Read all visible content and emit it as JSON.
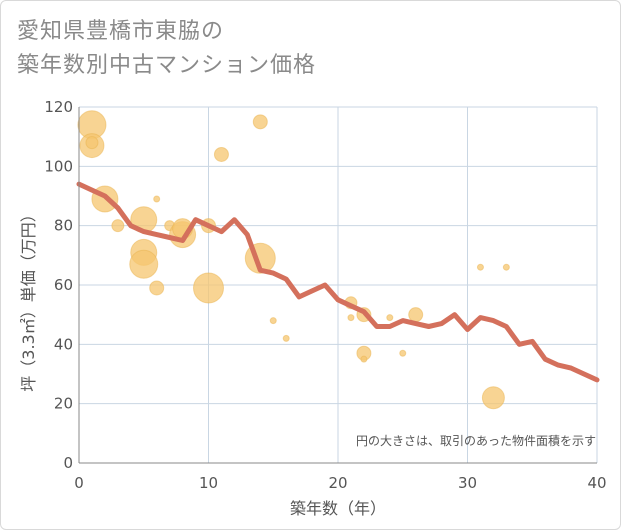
{
  "title": {
    "line1": "愛知県豊橋市東脇の",
    "line2": "築年数別中古マンション価格"
  },
  "note": "円の大きさは、取引のあった物件面積を示す",
  "colors": {
    "line": "#d4705c",
    "bubble_fill": "#f5c66f",
    "bubble_stroke": "#eab34f",
    "grid": "#c9d6e3",
    "axis": "#888888"
  },
  "chart_data": {
    "type": "scatter",
    "xlabel": "築年数（年）",
    "ylabel": "坪（3.3㎡）単価（万円）",
    "xlim": [
      0,
      40
    ],
    "ylim": [
      0,
      120
    ],
    "x_ticks": [
      "0",
      "10",
      "20",
      "30",
      "40"
    ],
    "y_ticks": [
      "0",
      "20",
      "40",
      "60",
      "80",
      "100",
      "120"
    ],
    "grid": true,
    "bubbles": [
      {
        "x": 1,
        "y": 114,
        "size": 14
      },
      {
        "x": 1,
        "y": 107,
        "size": 12
      },
      {
        "x": 1,
        "y": 108,
        "size": 6
      },
      {
        "x": 2,
        "y": 89,
        "size": 13
      },
      {
        "x": 3,
        "y": 80,
        "size": 6
      },
      {
        "x": 5,
        "y": 82,
        "size": 13
      },
      {
        "x": 5,
        "y": 71,
        "size": 13
      },
      {
        "x": 5,
        "y": 67,
        "size": 14
      },
      {
        "x": 6,
        "y": 89,
        "size": 3
      },
      {
        "x": 6,
        "y": 59,
        "size": 7
      },
      {
        "x": 7,
        "y": 80,
        "size": 5
      },
      {
        "x": 8,
        "y": 77,
        "size": 13
      },
      {
        "x": 8,
        "y": 79,
        "size": 10
      },
      {
        "x": 10,
        "y": 80,
        "size": 7
      },
      {
        "x": 10,
        "y": 59,
        "size": 15
      },
      {
        "x": 11,
        "y": 104,
        "size": 7
      },
      {
        "x": 14,
        "y": 115,
        "size": 7
      },
      {
        "x": 14,
        "y": 69,
        "size": 15
      },
      {
        "x": 15,
        "y": 48,
        "size": 3
      },
      {
        "x": 16,
        "y": 42,
        "size": 3
      },
      {
        "x": 21,
        "y": 54,
        "size": 6
      },
      {
        "x": 21,
        "y": 49,
        "size": 3
      },
      {
        "x": 22,
        "y": 50,
        "size": 7
      },
      {
        "x": 22,
        "y": 37,
        "size": 7
      },
      {
        "x": 22,
        "y": 35,
        "size": 3
      },
      {
        "x": 24,
        "y": 49,
        "size": 3
      },
      {
        "x": 25,
        "y": 37,
        "size": 3
      },
      {
        "x": 26,
        "y": 50,
        "size": 7
      },
      {
        "x": 31,
        "y": 66,
        "size": 3
      },
      {
        "x": 32,
        "y": 22,
        "size": 11
      },
      {
        "x": 33,
        "y": 66,
        "size": 3
      }
    ],
    "series": [
      {
        "type": "line",
        "x": [
          0,
          1,
          2,
          3,
          4,
          5,
          6,
          7,
          8,
          9,
          10,
          11,
          12,
          13,
          14,
          15,
          16,
          17,
          18,
          19,
          20,
          21,
          22,
          23,
          24,
          25,
          26,
          27,
          28,
          29,
          30,
          31,
          32,
          33,
          34,
          35,
          36,
          37,
          38,
          39,
          40
        ],
        "values": [
          94,
          92,
          90,
          86,
          80,
          78,
          77,
          76,
          75,
          82,
          80,
          78,
          82,
          77,
          65,
          64,
          62,
          56,
          58,
          60,
          55,
          53,
          51,
          46,
          46,
          48,
          47,
          46,
          47,
          50,
          45,
          49,
          48,
          46,
          40,
          41,
          35,
          33,
          32,
          30,
          28
        ]
      }
    ]
  }
}
